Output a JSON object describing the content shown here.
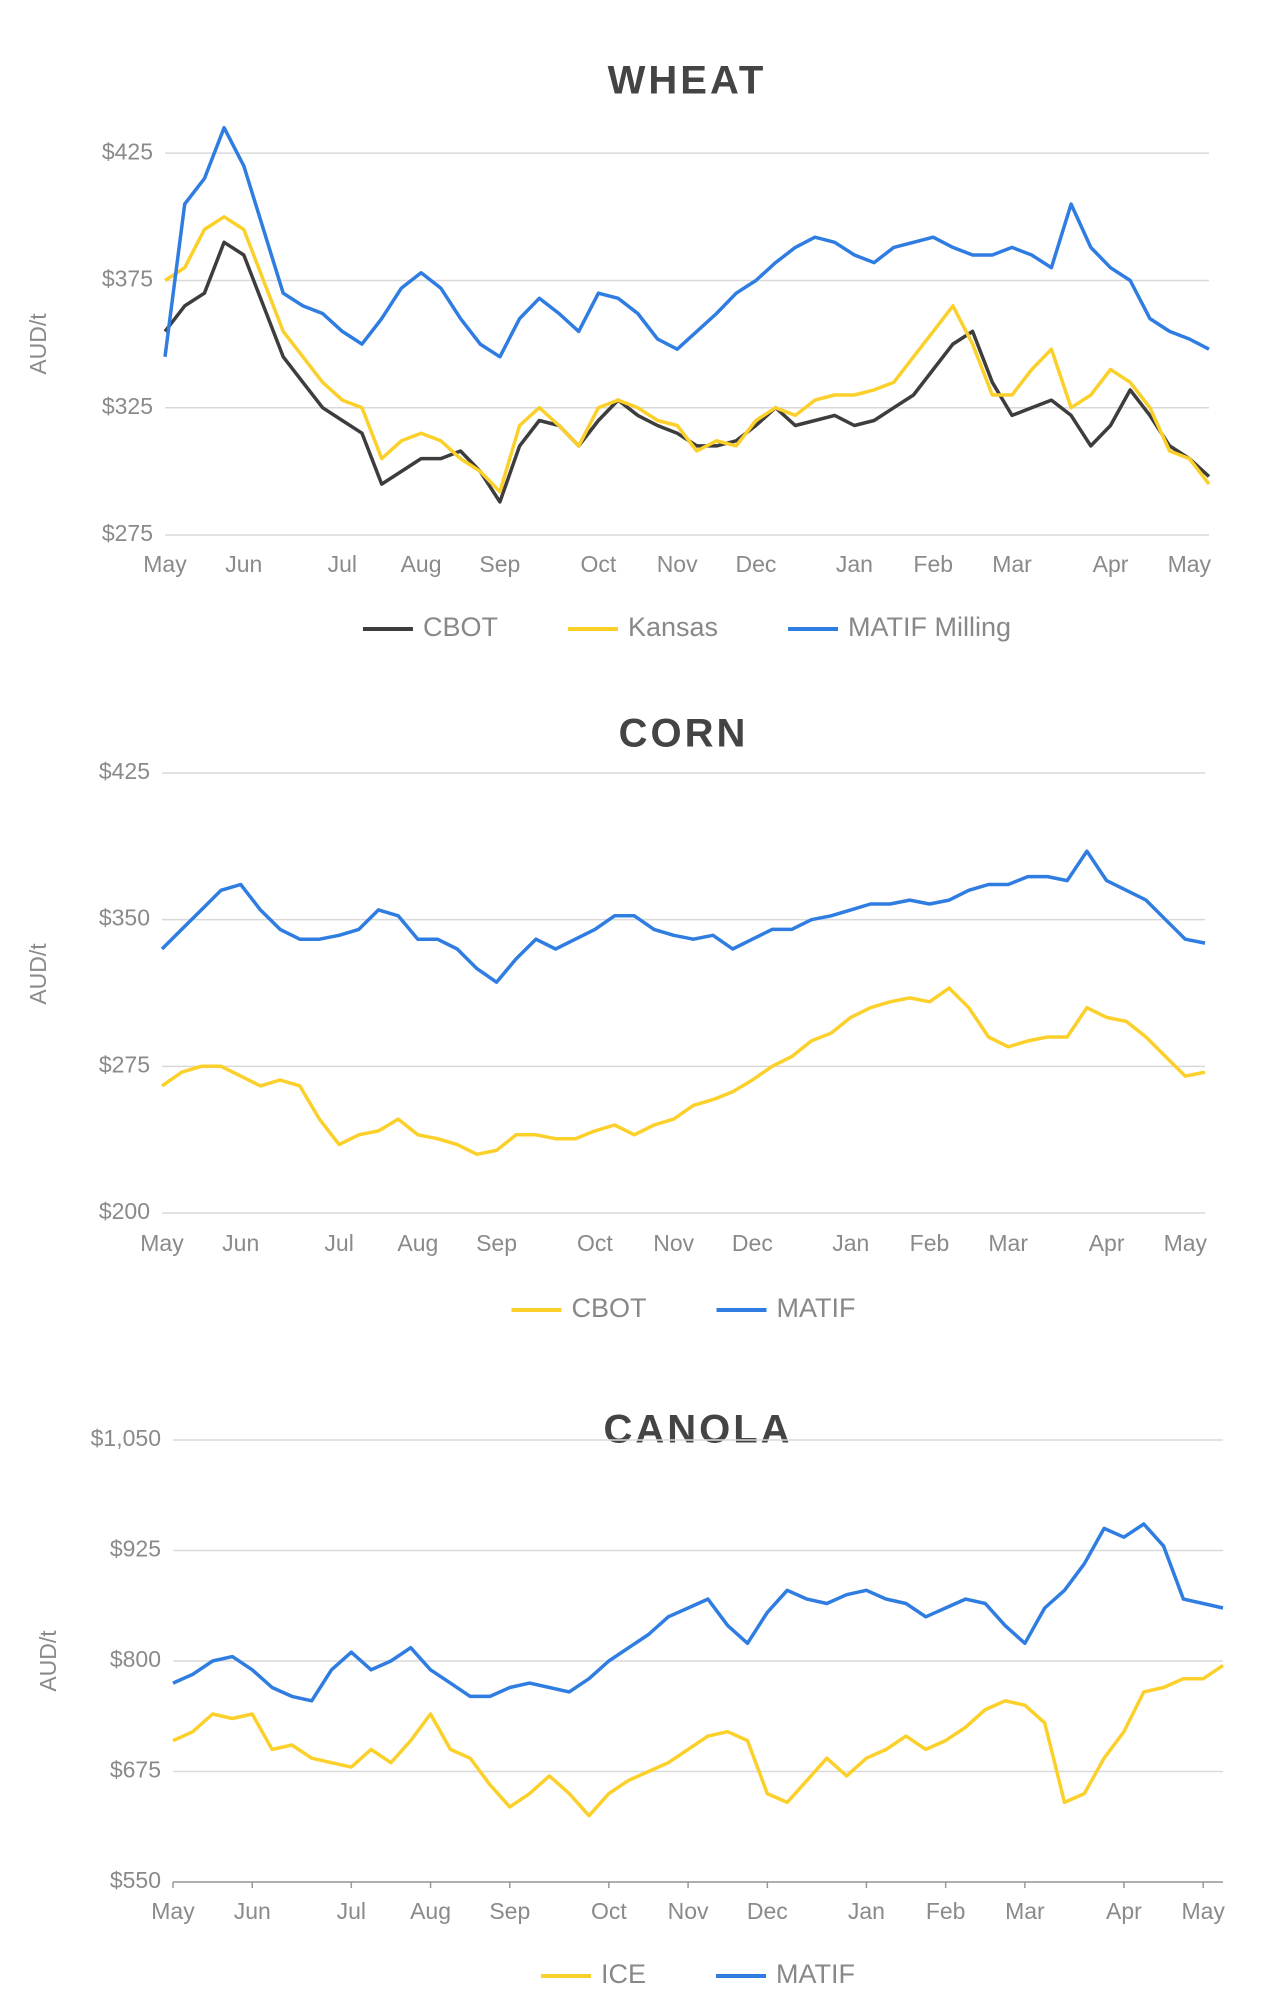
{
  "chart_data": [
    {
      "type": "line",
      "title": "WHEAT",
      "y_label": "AUD/t",
      "categories": [
        "May",
        null,
        null,
        null,
        "Jun",
        null,
        null,
        null,
        null,
        "Jul",
        null,
        null,
        null,
        "Aug",
        null,
        null,
        null,
        "Sep",
        null,
        null,
        null,
        null,
        "Oct",
        null,
        null,
        null,
        "Nov",
        null,
        null,
        null,
        "Dec",
        null,
        null,
        null,
        null,
        "Jan",
        null,
        null,
        null,
        "Feb",
        null,
        null,
        null,
        "Mar",
        null,
        null,
        null,
        null,
        "Apr",
        null,
        null,
        null,
        "May",
        null
      ],
      "ylim": [
        275,
        440
      ],
      "yticks": [
        {
          "value": 275,
          "label": "$275"
        },
        {
          "value": 325,
          "label": "$325"
        },
        {
          "value": 375,
          "label": "$375"
        },
        {
          "value": 425,
          "label": "$425"
        }
      ],
      "grid": true,
      "series": [
        {
          "name": "CBOT",
          "color": "#3d3d3d",
          "values": [
            355,
            365,
            370,
            390,
            385,
            365,
            345,
            335,
            325,
            320,
            315,
            295,
            300,
            305,
            305,
            308,
            300,
            288,
            310,
            320,
            318,
            310,
            320,
            328,
            322,
            318,
            315,
            310,
            310,
            312,
            318,
            325,
            318,
            320,
            322,
            318,
            320,
            325,
            330,
            340,
            350,
            355,
            335,
            322,
            325,
            328,
            322,
            310,
            318,
            332,
            322,
            310,
            305,
            298
          ]
        },
        {
          "name": "Kansas",
          "color": "#fcd02a",
          "values": [
            375,
            380,
            395,
            400,
            395,
            375,
            355,
            345,
            335,
            328,
            325,
            305,
            312,
            315,
            312,
            305,
            300,
            292,
            318,
            325,
            318,
            310,
            325,
            328,
            325,
            320,
            318,
            308,
            312,
            310,
            320,
            325,
            322,
            328,
            330,
            330,
            332,
            335,
            345,
            355,
            365,
            350,
            330,
            330,
            340,
            348,
            325,
            330,
            340,
            335,
            325,
            308,
            305,
            295
          ]
        },
        {
          "name": "MATIF Milling",
          "color": "#2f7de1",
          "values": [
            345,
            405,
            415,
            435,
            420,
            395,
            370,
            365,
            362,
            355,
            350,
            360,
            372,
            378,
            372,
            360,
            350,
            345,
            360,
            368,
            362,
            355,
            370,
            368,
            362,
            352,
            348,
            355,
            362,
            370,
            375,
            382,
            388,
            392,
            390,
            385,
            382,
            388,
            390,
            392,
            388,
            385,
            385,
            388,
            385,
            380,
            405,
            388,
            380,
            375,
            360,
            355,
            352,
            348
          ]
        }
      ]
    },
    {
      "type": "line",
      "title": "CORN",
      "y_label": "AUD/t",
      "categories": [
        "May",
        null,
        null,
        null,
        "Jun",
        null,
        null,
        null,
        null,
        "Jul",
        null,
        null,
        null,
        "Aug",
        null,
        null,
        null,
        "Sep",
        null,
        null,
        null,
        null,
        "Oct",
        null,
        null,
        null,
        "Nov",
        null,
        null,
        null,
        "Dec",
        null,
        null,
        null,
        null,
        "Jan",
        null,
        null,
        null,
        "Feb",
        null,
        null,
        null,
        "Mar",
        null,
        null,
        null,
        null,
        "Apr",
        null,
        null,
        null,
        "May",
        null
      ],
      "ylim": [
        200,
        425
      ],
      "yticks": [
        {
          "value": 200,
          "label": "$200"
        },
        {
          "value": 275,
          "label": "$275"
        },
        {
          "value": 350,
          "label": "$350"
        },
        {
          "value": 425,
          "label": "$425"
        }
      ],
      "grid": true,
      "series": [
        {
          "name": "CBOT",
          "color": "#fcd02a",
          "values": [
            265,
            272,
            275,
            275,
            270,
            265,
            268,
            265,
            248,
            235,
            240,
            242,
            248,
            240,
            238,
            235,
            230,
            232,
            240,
            240,
            238,
            238,
            242,
            245,
            240,
            245,
            248,
            255,
            258,
            262,
            268,
            275,
            280,
            288,
            292,
            300,
            305,
            308,
            310,
            308,
            315,
            305,
            290,
            285,
            288,
            290,
            290,
            305,
            300,
            298,
            290,
            280,
            270,
            272
          ]
        },
        {
          "name": "MATIF",
          "color": "#2f7de1",
          "values": [
            335,
            345,
            355,
            365,
            368,
            355,
            345,
            340,
            340,
            342,
            345,
            355,
            352,
            340,
            340,
            335,
            325,
            318,
            330,
            340,
            335,
            340,
            345,
            352,
            352,
            345,
            342,
            340,
            342,
            335,
            340,
            345,
            345,
            350,
            352,
            355,
            358,
            358,
            360,
            358,
            360,
            365,
            368,
            368,
            372,
            372,
            370,
            385,
            370,
            365,
            360,
            350,
            340,
            338
          ]
        }
      ]
    },
    {
      "type": "line",
      "title": "CANOLA",
      "y_label": "AUD/t",
      "categories": [
        "May",
        null,
        null,
        null,
        "Jun",
        null,
        null,
        null,
        null,
        "Jul",
        null,
        null,
        null,
        "Aug",
        null,
        null,
        null,
        "Sep",
        null,
        null,
        null,
        null,
        "Oct",
        null,
        null,
        null,
        "Nov",
        null,
        null,
        null,
        "Dec",
        null,
        null,
        null,
        null,
        "Jan",
        null,
        null,
        null,
        "Feb",
        null,
        null,
        null,
        "Mar",
        null,
        null,
        null,
        null,
        "Apr",
        null,
        null,
        null,
        "May",
        null
      ],
      "ylim": [
        550,
        1050
      ],
      "yticks": [
        {
          "value": 550,
          "label": "$550"
        },
        {
          "value": 675,
          "label": "$675"
        },
        {
          "value": 800,
          "label": "$800"
        },
        {
          "value": 925,
          "label": "$925"
        },
        {
          "value": 1050,
          "label": "$1,050"
        }
      ],
      "grid": true,
      "series": [
        {
          "name": "ICE",
          "color": "#fcd02a",
          "values": [
            710,
            720,
            740,
            735,
            740,
            700,
            705,
            690,
            685,
            680,
            700,
            685,
            710,
            740,
            700,
            690,
            660,
            635,
            650,
            670,
            650,
            625,
            650,
            665,
            675,
            685,
            700,
            715,
            720,
            710,
            650,
            640,
            665,
            690,
            670,
            690,
            700,
            715,
            700,
            710,
            725,
            745,
            755,
            750,
            730,
            640,
            650,
            690,
            720,
            765,
            770,
            780,
            780,
            795
          ]
        },
        {
          "name": "MATIF",
          "color": "#2f7de1",
          "values": [
            775,
            785,
            800,
            805,
            790,
            770,
            760,
            755,
            790,
            810,
            790,
            800,
            815,
            790,
            775,
            760,
            760,
            770,
            775,
            770,
            765,
            780,
            800,
            815,
            830,
            850,
            860,
            870,
            840,
            820,
            855,
            880,
            870,
            865,
            875,
            880,
            870,
            865,
            850,
            860,
            870,
            865,
            840,
            820,
            860,
            880,
            910,
            950,
            940,
            955,
            930,
            870,
            865,
            860
          ]
        }
      ]
    }
  ]
}
